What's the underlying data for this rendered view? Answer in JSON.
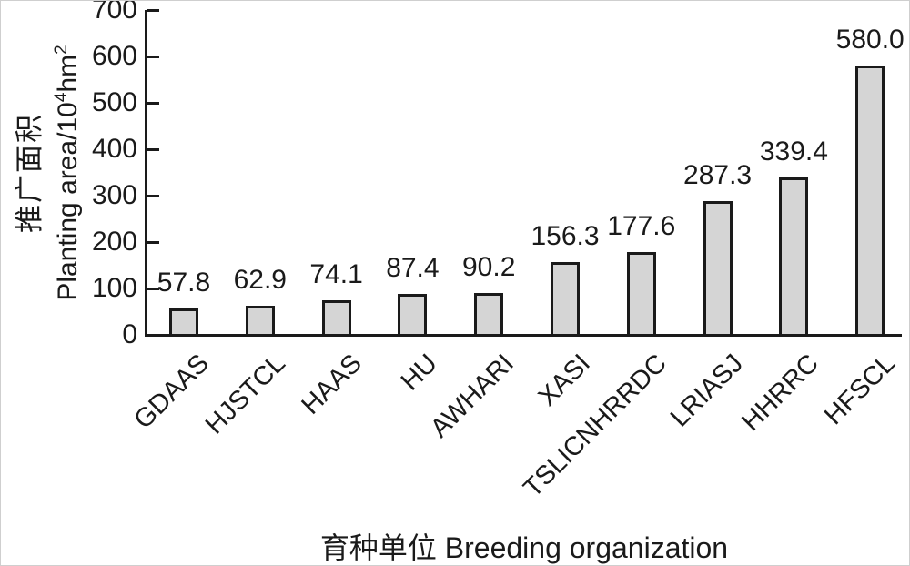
{
  "figure": {
    "x_axis_title": "育种单位 Breeding organization",
    "y_axis_title_cn": "推广面积",
    "y_axis_title_en": {
      "prefix": "Planting area/10",
      "sup1": "4",
      "mid": "hm",
      "sup2": "2"
    }
  },
  "chart_data": {
    "type": "bar",
    "categories": [
      "GDAAS",
      "HJSTCL",
      "HAAS",
      "HU",
      "AWHARI",
      "XASI",
      "TSLICNHRRDC",
      "LRIASJ",
      "HHRRC",
      "HFSCL"
    ],
    "values": [
      57.8,
      62.9,
      74.1,
      87.4,
      90.2,
      156.3,
      177.6,
      287.3,
      339.4,
      580.0
    ],
    "value_labels": [
      "57.8",
      "62.9",
      "74.1",
      "87.4",
      "90.2",
      "156.3",
      "177.6",
      "287.3",
      "339.4",
      "580.0"
    ],
    "title": "",
    "xlabel": "育种单位 Breeding organization",
    "ylabel": "推广面积 Planting area/10⁴hm²",
    "ylim": [
      0,
      700
    ],
    "yticks": [
      0,
      100,
      200,
      300,
      400,
      500,
      600,
      700
    ],
    "grid": false,
    "legend": "none",
    "bar_fill": "#d5d5d5",
    "bar_border": "#1a1a1a",
    "axis_color": "#1a1a1a",
    "label_rotation_deg": 45
  }
}
